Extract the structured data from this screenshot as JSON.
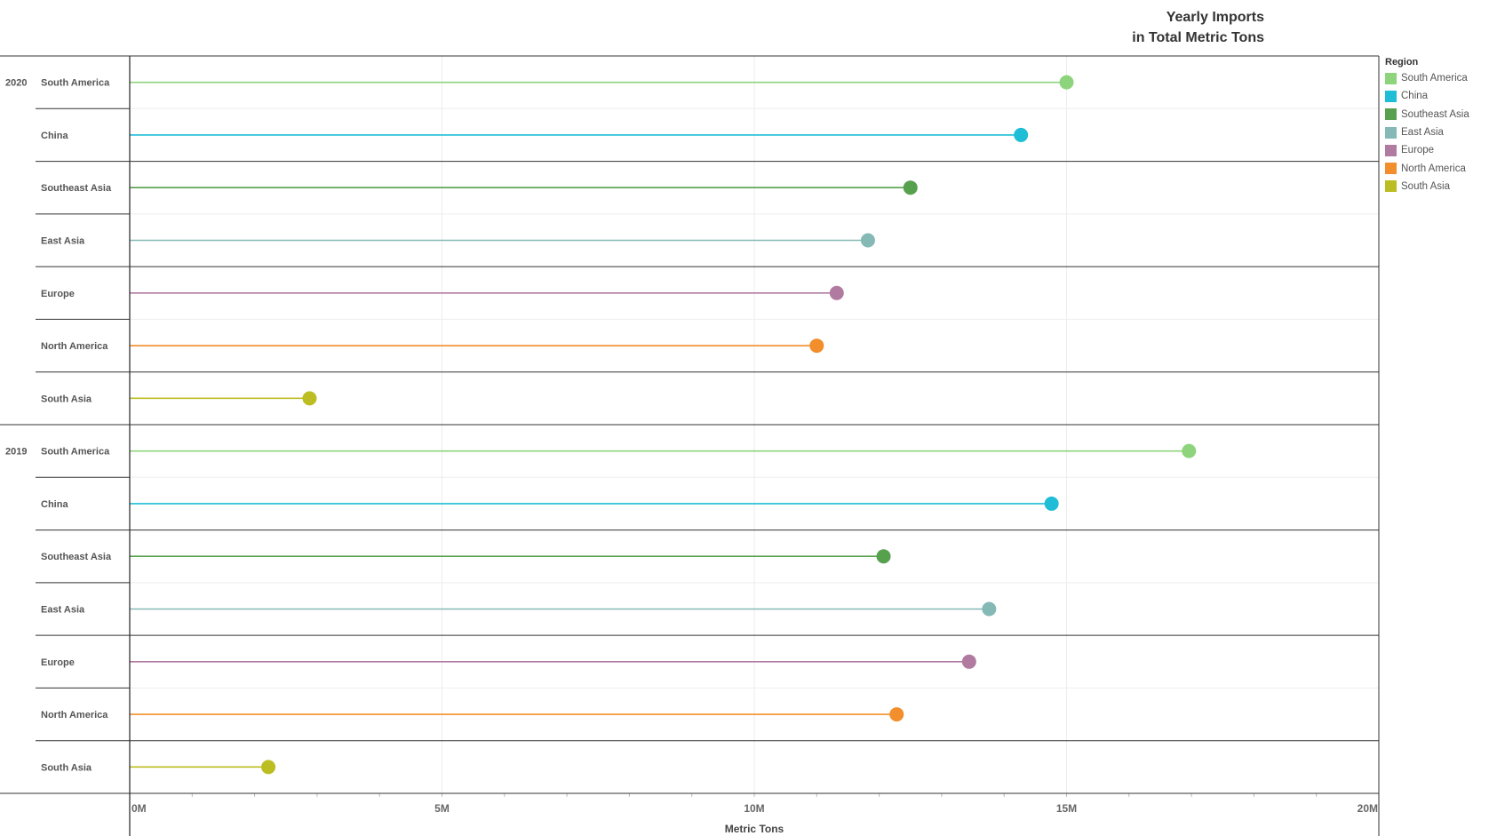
{
  "chart_data": {
    "type": "lollipop",
    "title_lines": [
      "Yearly Imports",
      "in Total Metric Tons"
    ],
    "xlabel": "Metric Tons",
    "xlim": [
      0,
      20000000
    ],
    "xticks": [
      "0M",
      "5M",
      "10M",
      "15M",
      "20M"
    ],
    "grid": true,
    "legend": {
      "title": "Region",
      "placement": "right",
      "entries": [
        {
          "name": "South America",
          "color": "#8ed47c"
        },
        {
          "name": "China",
          "color": "#1fbed6"
        },
        {
          "name": "Southeast Asia",
          "color": "#57a04e"
        },
        {
          "name": "East Asia",
          "color": "#84b9b5"
        },
        {
          "name": "Europe",
          "color": "#b07aa1"
        },
        {
          "name": "North America",
          "color": "#f28e2b"
        },
        {
          "name": "South Asia",
          "color": "#bcbd22"
        }
      ]
    },
    "groups": [
      {
        "year": "2020",
        "rows": [
          {
            "region": "South America",
            "value": 15000000
          },
          {
            "region": "China",
            "value": 14270000
          },
          {
            "region": "Southeast Asia",
            "value": 12500000
          },
          {
            "region": "East Asia",
            "value": 11820000
          },
          {
            "region": "Europe",
            "value": 11320000
          },
          {
            "region": "North America",
            "value": 11000000
          },
          {
            "region": "South Asia",
            "value": 2880000
          }
        ]
      },
      {
        "year": "2019",
        "rows": [
          {
            "region": "South America",
            "value": 16960000
          },
          {
            "region": "China",
            "value": 14760000
          },
          {
            "region": "Southeast Asia",
            "value": 12070000
          },
          {
            "region": "East Asia",
            "value": 13760000
          },
          {
            "region": "Europe",
            "value": 13440000
          },
          {
            "region": "North America",
            "value": 12280000
          },
          {
            "region": "South Asia",
            "value": 2220000
          }
        ]
      }
    ]
  }
}
